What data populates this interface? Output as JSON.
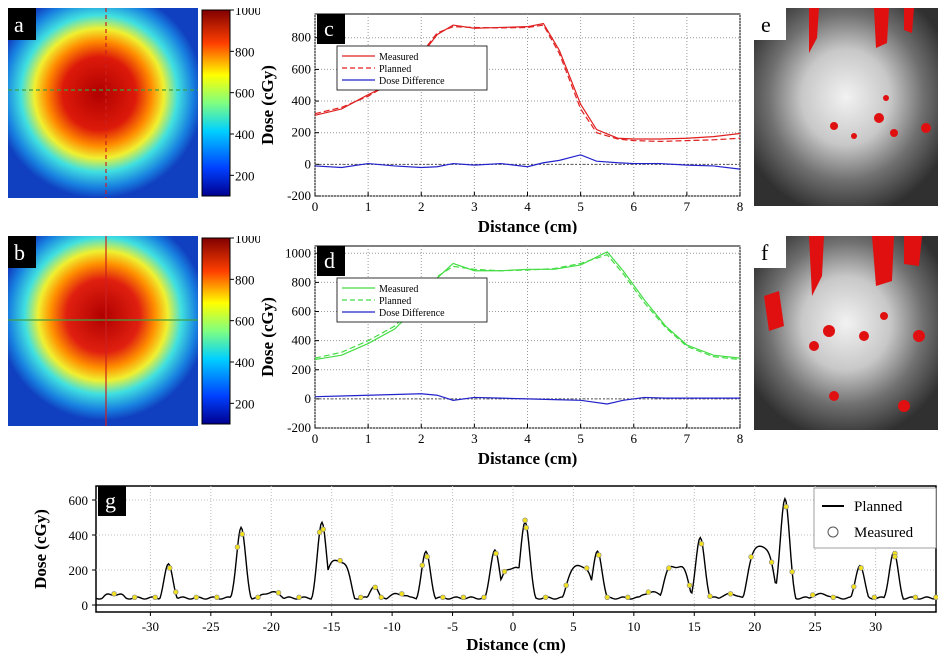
{
  "panels": {
    "a": "a",
    "b": "b",
    "c": "c",
    "d": "d",
    "e": "e",
    "f": "f",
    "g": "g"
  },
  "colorbar": {
    "ticks": [
      "1000",
      "800",
      "600",
      "400",
      "200"
    ],
    "tick_values": [
      1000,
      800,
      600,
      400,
      200
    ],
    "range": [
      100,
      1000
    ]
  },
  "chart_data": [
    {
      "id": "c",
      "type": "line",
      "xlabel": "Distance (cm)",
      "ylabel": "Dose (cGy)",
      "xlim": [
        0,
        8
      ],
      "ylim": [
        -200,
        950
      ],
      "xticks": [
        "0",
        "1",
        "2",
        "3",
        "4",
        "5",
        "6",
        "7",
        "8"
      ],
      "yticks": [
        "-200",
        "0",
        "200",
        "400",
        "600",
        "800"
      ],
      "grid": true,
      "legend_position": "upper-left",
      "x": [
        0,
        0.5,
        1,
        1.5,
        2,
        2.3,
        2.6,
        3,
        3.5,
        4,
        4.3,
        4.6,
        5,
        5.3,
        5.7,
        6,
        6.5,
        7,
        7.5,
        8
      ],
      "series": [
        {
          "name": "Measured",
          "color": "#e02020",
          "style": "solid",
          "values": [
            310,
            350,
            440,
            520,
            690,
            820,
            880,
            860,
            865,
            870,
            890,
            720,
            380,
            220,
            165,
            160,
            160,
            165,
            175,
            195
          ]
        },
        {
          "name": "Planned",
          "color": "#e02020",
          "style": "dashed",
          "values": [
            320,
            360,
            430,
            530,
            700,
            830,
            870,
            865,
            862,
            865,
            880,
            700,
            350,
            200,
            160,
            150,
            145,
            150,
            155,
            165
          ]
        },
        {
          "name": "Dose Difference",
          "color": "#2222cc",
          "style": "solid",
          "values": [
            -10,
            -20,
            5,
            -10,
            -20,
            -15,
            5,
            -5,
            5,
            -15,
            10,
            25,
            60,
            20,
            10,
            5,
            5,
            -5,
            -10,
            -30
          ]
        }
      ]
    },
    {
      "id": "d",
      "type": "line",
      "xlabel": "Distance (cm)",
      "ylabel": "Dose (cGy)",
      "xlim": [
        0,
        8
      ],
      "ylim": [
        -200,
        1050
      ],
      "xticks": [
        "0",
        "1",
        "2",
        "3",
        "4",
        "5",
        "6",
        "7",
        "8"
      ],
      "yticks": [
        "-200",
        "0",
        "200",
        "400",
        "600",
        "800",
        "1000"
      ],
      "grid": true,
      "legend_position": "upper-left",
      "x": [
        0,
        0.5,
        1,
        1.5,
        2,
        2.3,
        2.6,
        3,
        3.5,
        4,
        4.5,
        5,
        5.5,
        5.8,
        6.2,
        6.6,
        7,
        7.5,
        8
      ],
      "series": [
        {
          "name": "Measured",
          "color": "#44dd44",
          "style": "solid",
          "values": [
            270,
            300,
            380,
            480,
            660,
            830,
            930,
            880,
            880,
            890,
            890,
            920,
            1010,
            880,
            680,
            500,
            370,
            300,
            280
          ]
        },
        {
          "name": "Planned",
          "color": "#44dd44",
          "style": "dashed",
          "values": [
            280,
            320,
            400,
            500,
            680,
            840,
            910,
            890,
            880,
            885,
            895,
            930,
            990,
            860,
            660,
            490,
            360,
            290,
            270
          ]
        },
        {
          "name": "Dose Difference",
          "color": "#2222cc",
          "style": "solid",
          "values": [
            15,
            20,
            25,
            30,
            35,
            25,
            -10,
            10,
            5,
            0,
            -5,
            -10,
            -35,
            -10,
            10,
            5,
            5,
            5,
            5
          ]
        }
      ]
    },
    {
      "id": "g",
      "type": "line",
      "xlabel": "Distance (cm)",
      "ylabel": "Dose (cGy)",
      "xlim": [
        -34.5,
        35
      ],
      "ylim": [
        -40,
        680
      ],
      "xticks": [
        "-30",
        "-25",
        "-20",
        "-15",
        "-10",
        "-5",
        "0",
        "5",
        "10",
        "15",
        "20",
        "25",
        "30"
      ],
      "xtick_values": [
        -30,
        -25,
        -20,
        -15,
        -10,
        -5,
        0,
        5,
        10,
        15,
        20,
        25,
        30
      ],
      "yticks": [
        "0",
        "200",
        "400",
        "600"
      ],
      "grid": true,
      "legend_position": "top-right",
      "peaks": [
        [
          -28.5,
          230
        ],
        [
          -22.5,
          440
        ],
        [
          -15.8,
          470
        ],
        [
          -11.5,
          110
        ],
        [
          -7.2,
          300
        ],
        [
          -1.5,
          320
        ],
        [
          1.0,
          480
        ],
        [
          7.0,
          310
        ],
        [
          15.5,
          380
        ],
        [
          22.5,
          610
        ],
        [
          28.7,
          230
        ],
        [
          31.5,
          300
        ]
      ],
      "shoulders": [
        [
          -33,
          60
        ],
        [
          -25.5,
          40
        ],
        [
          -20,
          70
        ],
        [
          -14.5,
          250
        ],
        [
          -9.5,
          60
        ],
        [
          -5,
          30
        ],
        [
          0,
          210
        ],
        [
          5.5,
          220
        ],
        [
          11.5,
          70
        ],
        [
          13.5,
          220
        ],
        [
          18,
          60
        ],
        [
          20.5,
          330
        ],
        [
          25.5,
          60
        ]
      ],
      "series": [
        {
          "name": "Planned",
          "color": "#000000",
          "style": "solid"
        },
        {
          "name": "Measured",
          "color": "#888888",
          "style": "marker"
        }
      ]
    }
  ]
}
